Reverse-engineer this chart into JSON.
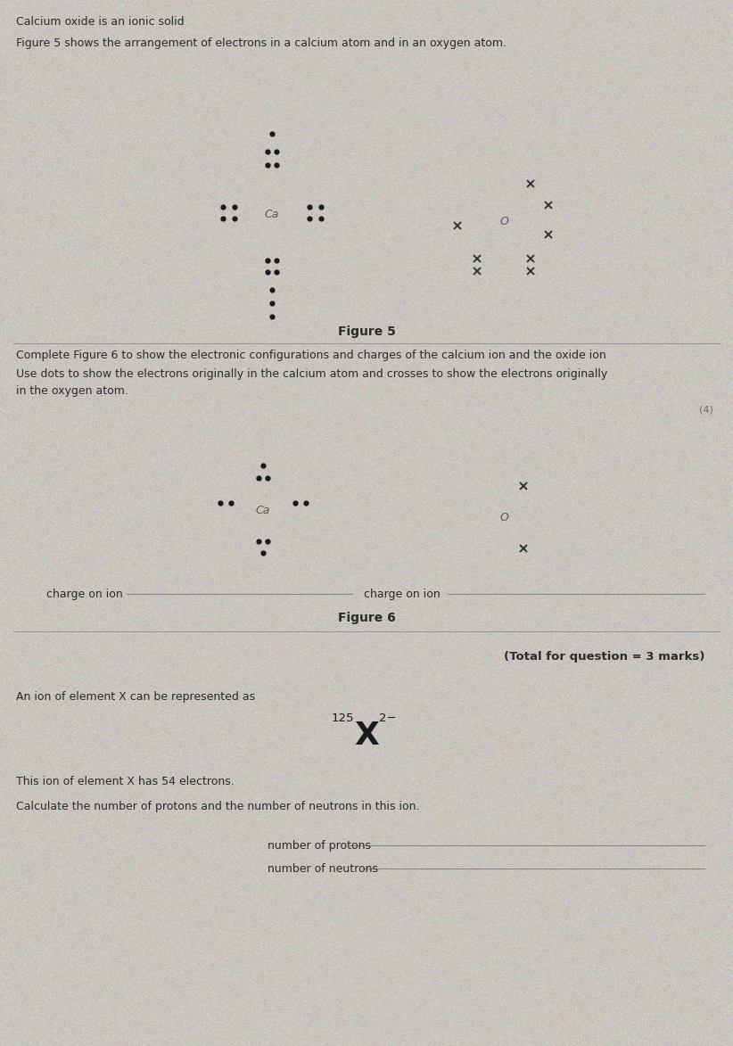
{
  "bg_color": "#c9c5bf",
  "text_color": "#2a2a2a",
  "title_line1": "Calcium oxide is an ionic solid",
  "fig5_caption": "Figure 5 shows the arrangement of electrons in a calcium atom and in an oxygen atom.",
  "fig5_label": "Figure 5",
  "fig6_intro1": "Complete Figure 6 to show the electronic configurations and charges of the calcium ion and the oxide ion",
  "fig6_intro2": "Use dots to show the electrons originally in the calcium atom and crosses to show the electrons originally",
  "fig6_intro3": "in the oxygen atom.",
  "fig6_label": "Figure 6",
  "charge_label_left": "charge on ion",
  "charge_label_right": "charge on ion",
  "total_marks": "(Total for question = 3 marks)",
  "ion_intro": "An ion of element X can be represented as",
  "ion_electrons": "This ion of element X has 54 electrons.",
  "ion_calculate": "Calculate the number of protons and the number of neutrons in this ion.",
  "protons_label": "number of protons",
  "neutrons_label": "number of neutrons",
  "marks_corner": "(4)"
}
